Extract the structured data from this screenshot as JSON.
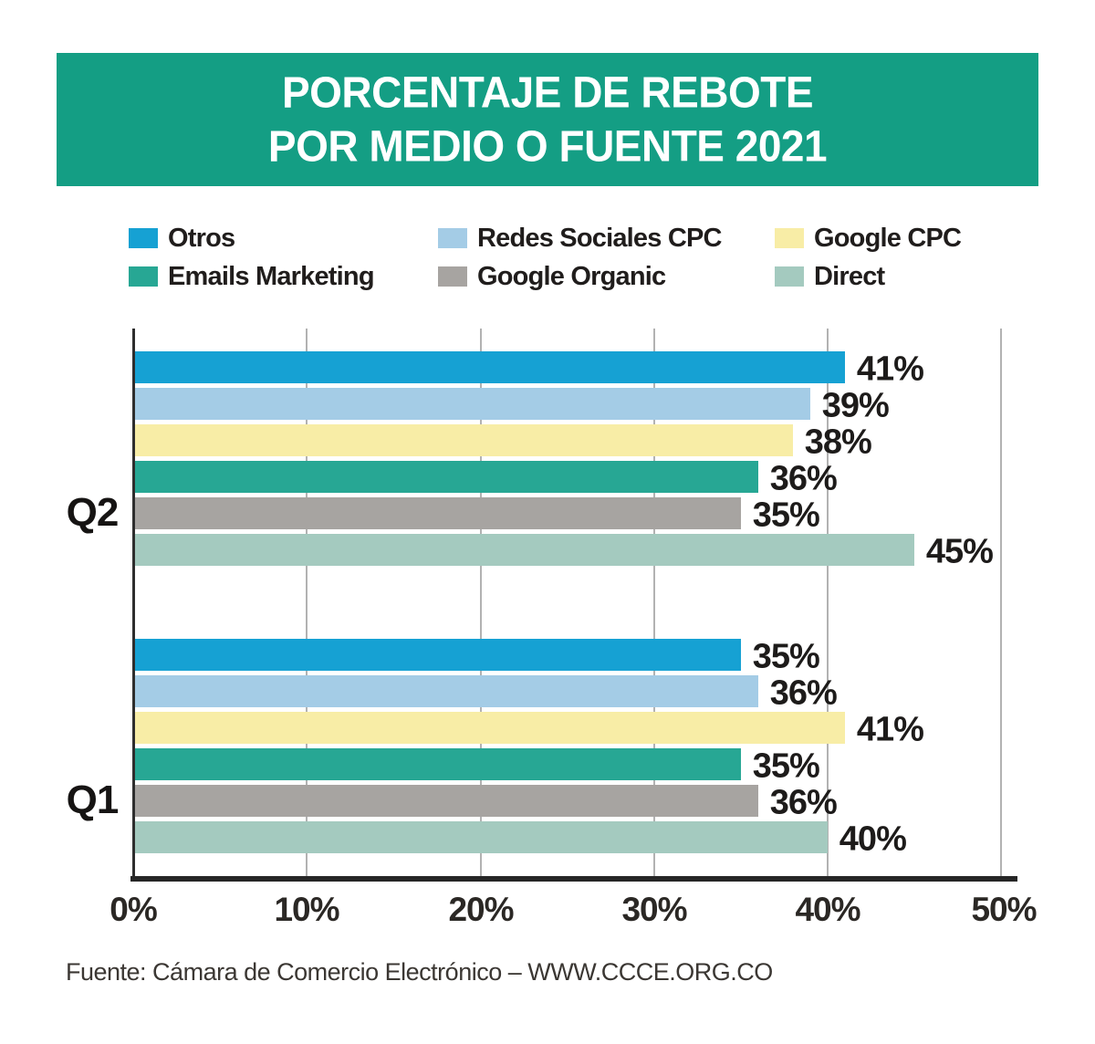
{
  "title": {
    "line1": "PORCENTAJE DE REBOTE",
    "line2": "POR MEDIO O FUENTE 2021"
  },
  "colors": {
    "banner": "#149e84",
    "title_text": "#ffffff",
    "axis": "#262626",
    "gridline": "#b2b2b2",
    "value_text": "#1d1b1a"
  },
  "chart_data": {
    "type": "bar",
    "orientation": "horizontal",
    "title": "PORCENTAJE DE REBOTE POR MEDIO O FUENTE 2021",
    "categories": [
      "Q2",
      "Q1"
    ],
    "series": [
      {
        "name": "Otros",
        "color": "#16a1d3",
        "values": [
          41,
          35
        ]
      },
      {
        "name": "Redes Sociales CPC",
        "color": "#a4cce6",
        "values": [
          39,
          36
        ]
      },
      {
        "name": "Google CPC",
        "color": "#f8eda6",
        "values": [
          38,
          41
        ]
      },
      {
        "name": "Emails Marketing",
        "color": "#27a794",
        "values": [
          36,
          35
        ]
      },
      {
        "name": "Google Organic",
        "color": "#a7a4a1",
        "values": [
          35,
          36
        ]
      },
      {
        "name": "Direct",
        "color": "#a4cabf",
        "values": [
          45,
          40
        ]
      }
    ],
    "value_suffix": "%",
    "x_ticks": [
      "0%",
      "10%",
      "20%",
      "30%",
      "40%",
      "50%"
    ],
    "xlim": [
      0,
      50
    ],
    "grid": "vertical",
    "legend_position": "top",
    "legend_columns": [
      [
        "Otros",
        "Emails Marketing"
      ],
      [
        "Redes Sociales CPC",
        "Google Organic"
      ],
      [
        "Google CPC",
        "Direct"
      ]
    ]
  },
  "source": "Fuente: Cámara de Comercio Electrónico – WWW.CCCE.ORG.CO"
}
